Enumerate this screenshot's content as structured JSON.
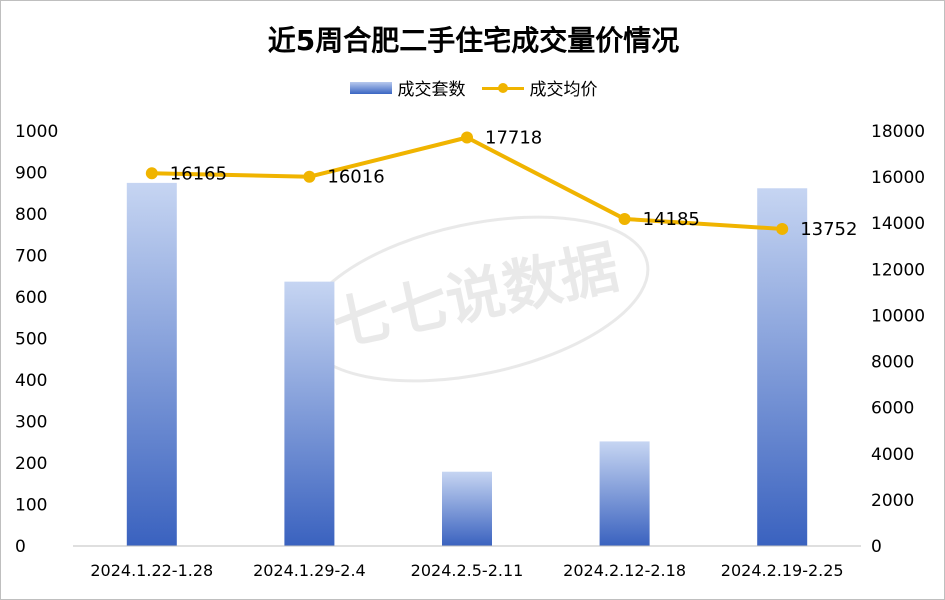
{
  "title": "近5周合肥二手住宅成交量价情况",
  "watermark": "七七说数据",
  "colors": {
    "bar_top": "#c6d5f2",
    "bar_bottom": "#3a62bf",
    "line": "#f0b400"
  },
  "chart_data": {
    "type": "bar+line",
    "title": "近5周合肥二手住宅成交量价情况",
    "categories": [
      "2024.1.22-1.28",
      "2024.1.29-2.4",
      "2024.2.5-2.11",
      "2024.2.12-2.18",
      "2024.2.19-2.25"
    ],
    "series": [
      {
        "name": "成交套数",
        "type": "bar",
        "axis": "left",
        "values": [
          875,
          637,
          179,
          252,
          862
        ]
      },
      {
        "name": "成交均价",
        "type": "line",
        "axis": "right",
        "values": [
          16165,
          16016,
          17718,
          14185,
          13752
        ],
        "labels": [
          "16165",
          "16016",
          "17718",
          "14185",
          "13752"
        ]
      }
    ],
    "y_left": {
      "min": 0,
      "max": 1000,
      "ticks": [
        "0",
        "100",
        "200",
        "300",
        "400",
        "500",
        "600",
        "700",
        "800",
        "900",
        "1000"
      ]
    },
    "y_right": {
      "min": 0,
      "max": 18000,
      "ticks": [
        "0",
        "2000",
        "4000",
        "6000",
        "8000",
        "10000",
        "12000",
        "14000",
        "16000",
        "18000"
      ]
    },
    "legend": "top",
    "grid": false
  }
}
